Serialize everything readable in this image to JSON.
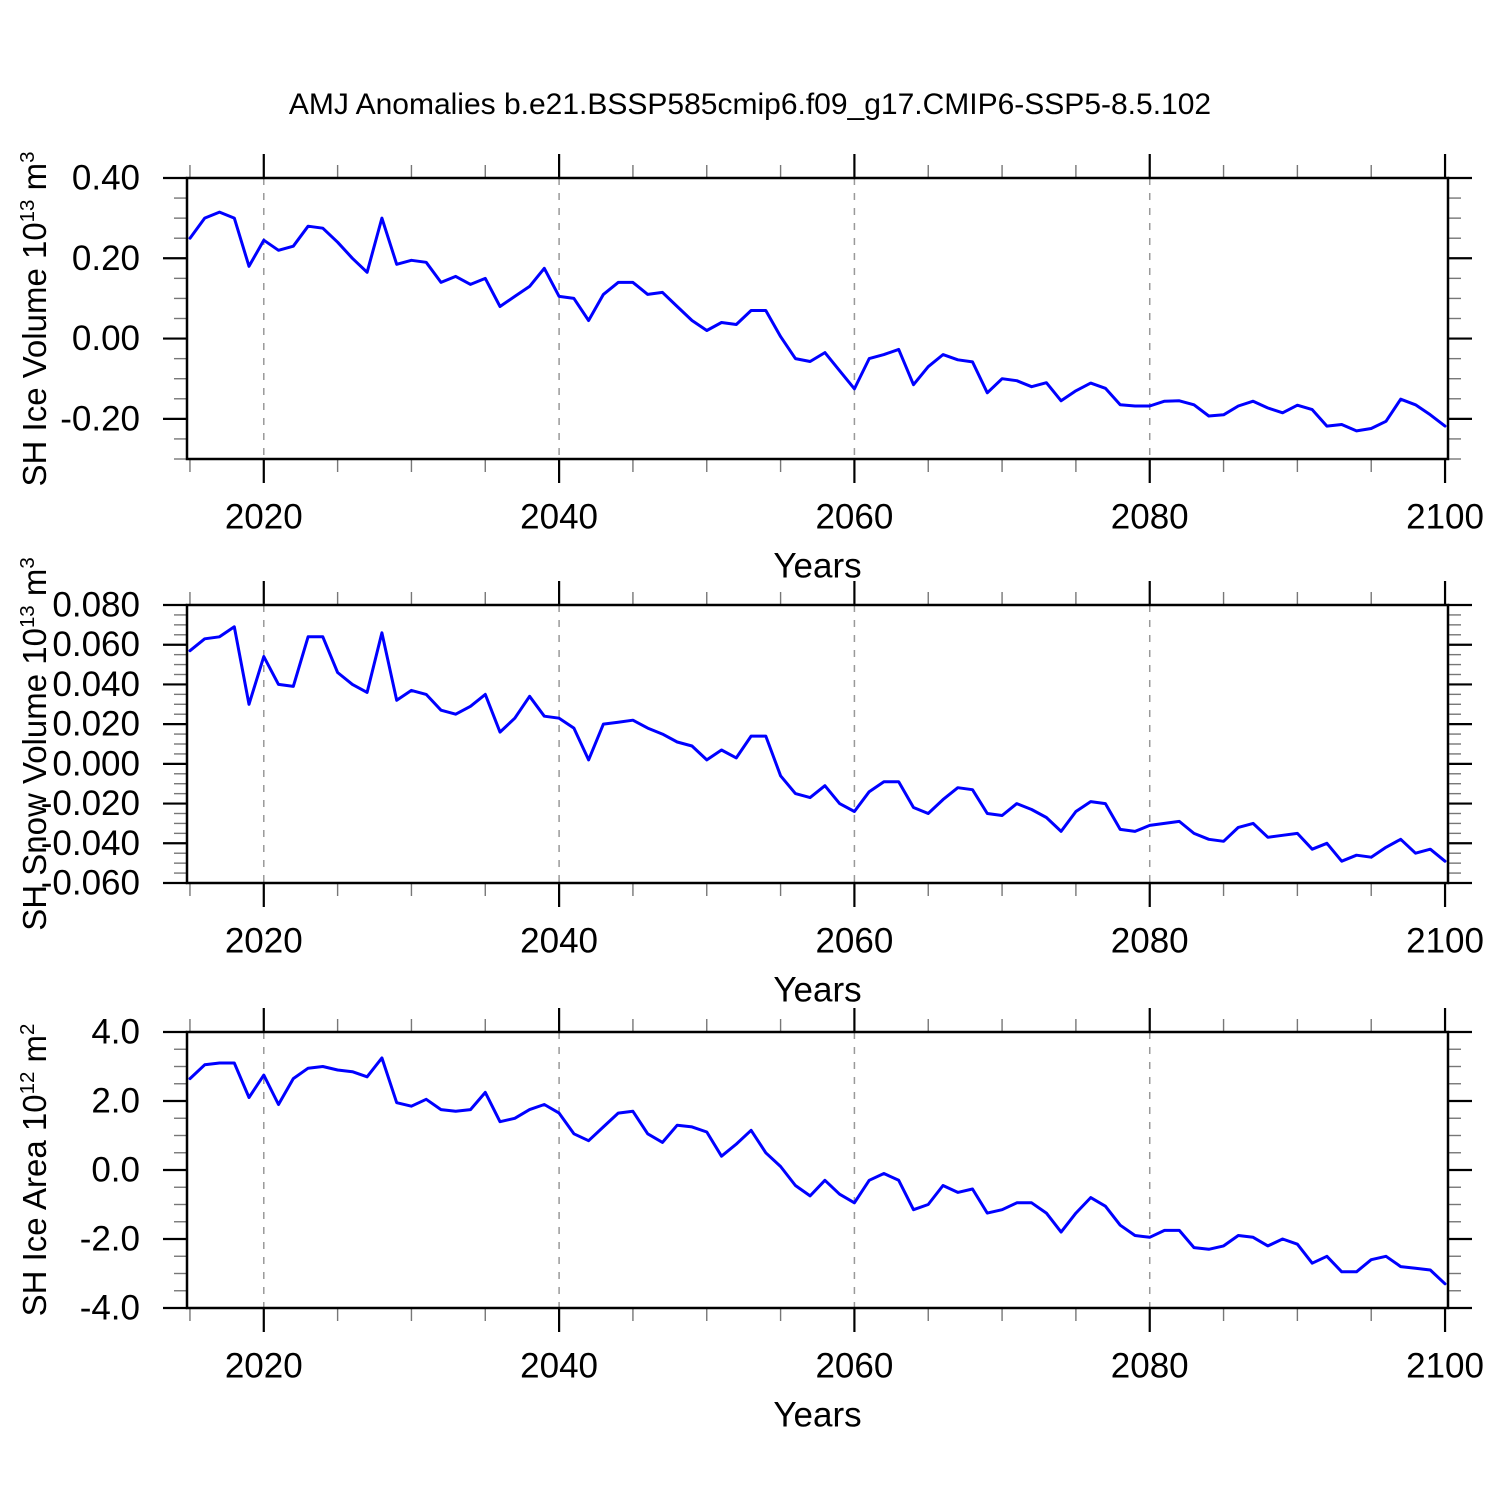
{
  "page": {
    "title": "AMJ Anomalies b.e21.BSSP585cmip6.f09_g17.CMIP6-SSP5-8.5.102",
    "background": "#ffffff"
  },
  "style": {
    "line_color": "#0000ff",
    "axis_color": "#000000",
    "grid_color": "#999999"
  },
  "axis": {
    "xlabel": "Years",
    "x_range": [
      2014.8,
      2100.2
    ],
    "x_major_ticks": [
      2020,
      2040,
      2060,
      2080,
      2100
    ],
    "x_major_labels": [
      "2020",
      "2040",
      "2060",
      "2080",
      "2100"
    ],
    "x_minor_step": 5,
    "gridlines": [
      2020,
      2040,
      2060,
      2080
    ]
  },
  "chart_data": [
    {
      "type": "line",
      "name": "sh-ice-volume",
      "ylabel": "SH Ice Volume 10^13 m^3",
      "ylabel_main": "SH Ice Volume 10",
      "ylabel_exp": "13",
      "ylabel_unit": " m",
      "ylabel_unit_exp": "3",
      "ylim": [
        -0.3,
        0.4
      ],
      "y_major_ticks": [
        0.4,
        0.2,
        0.0,
        -0.2
      ],
      "y_tick_labels": [
        "0.40",
        "0.20",
        "0.00",
        "-0.20"
      ],
      "y_minor_step": 0.05,
      "x_start": 2015,
      "values": [
        0.25,
        0.3,
        0.315,
        0.3,
        0.18,
        0.245,
        0.22,
        0.23,
        0.28,
        0.275,
        0.24,
        0.2,
        0.165,
        0.3,
        0.185,
        0.195,
        0.19,
        0.14,
        0.155,
        0.135,
        0.15,
        0.08,
        0.105,
        0.13,
        0.175,
        0.105,
        0.1,
        0.045,
        0.11,
        0.14,
        0.14,
        0.11,
        0.115,
        0.08,
        0.045,
        0.02,
        0.04,
        0.035,
        0.07,
        0.07,
        0.005,
        -0.05,
        -0.057,
        -0.035,
        -0.08,
        -0.125,
        -0.05,
        -0.04,
        -0.027,
        -0.115,
        -0.07,
        -0.04,
        -0.053,
        -0.058,
        -0.135,
        -0.1,
        -0.105,
        -0.12,
        -0.11,
        -0.155,
        -0.13,
        -0.111,
        -0.124,
        -0.165,
        -0.168,
        -0.168,
        -0.156,
        -0.155,
        -0.165,
        -0.193,
        -0.19,
        -0.168,
        -0.156,
        -0.173,
        -0.185,
        -0.166,
        -0.177,
        -0.218,
        -0.214,
        -0.23,
        -0.224,
        -0.206,
        -0.151,
        -0.165,
        -0.19,
        -0.218
      ]
    },
    {
      "type": "line",
      "name": "sh-snow-volume",
      "ylabel": "SH Snow Volume 10^13 m^3",
      "ylabel_main": "SH Snow Volume 10",
      "ylabel_exp": "13",
      "ylabel_unit": " m",
      "ylabel_unit_exp": "3",
      "ylim": [
        -0.06,
        0.08
      ],
      "y_major_ticks": [
        0.08,
        0.06,
        0.04,
        0.02,
        0.0,
        -0.02,
        -0.04,
        -0.06
      ],
      "y_tick_labels": [
        "0.080",
        "0.060",
        "0.040",
        "0.020",
        "0.000",
        "-0.020",
        "-0.040",
        "-0.060"
      ],
      "y_minor_step": 0.005,
      "x_start": 2015,
      "values": [
        0.057,
        0.063,
        0.064,
        0.069,
        0.03,
        0.054,
        0.04,
        0.039,
        0.064,
        0.064,
        0.046,
        0.04,
        0.036,
        0.066,
        0.032,
        0.037,
        0.035,
        0.027,
        0.025,
        0.029,
        0.035,
        0.016,
        0.023,
        0.034,
        0.024,
        0.023,
        0.018,
        0.002,
        0.02,
        0.021,
        0.022,
        0.018,
        0.015,
        0.011,
        0.009,
        0.002,
        0.007,
        0.003,
        0.014,
        0.014,
        -0.006,
        -0.015,
        -0.017,
        -0.011,
        -0.02,
        -0.024,
        -0.014,
        -0.009,
        -0.009,
        -0.022,
        -0.025,
        -0.018,
        -0.012,
        -0.013,
        -0.025,
        -0.026,
        -0.02,
        -0.023,
        -0.027,
        -0.034,
        -0.024,
        -0.019,
        -0.02,
        -0.033,
        -0.034,
        -0.031,
        -0.03,
        -0.029,
        -0.035,
        -0.038,
        -0.039,
        -0.032,
        -0.03,
        -0.037,
        -0.036,
        -0.035,
        -0.043,
        -0.04,
        -0.049,
        -0.046,
        -0.047,
        -0.042,
        -0.038,
        -0.045,
        -0.043,
        -0.049
      ]
    },
    {
      "type": "line",
      "name": "sh-ice-area",
      "ylabel": "SH Ice Area 10^12 m^2",
      "ylabel_main": "SH Ice Area 10",
      "ylabel_exp": "12",
      "ylabel_unit": " m",
      "ylabel_unit_exp": "2",
      "ylim": [
        -4.0,
        4.0
      ],
      "y_major_ticks": [
        4.0,
        2.0,
        0.0,
        -2.0,
        -4.0
      ],
      "y_tick_labels": [
        "4.0",
        "2.0",
        "0.0",
        "-2.0",
        "-4.0"
      ],
      "y_minor_step": 0.5,
      "x_start": 2015,
      "values": [
        2.65,
        3.05,
        3.1,
        3.1,
        2.1,
        2.75,
        1.9,
        2.65,
        2.95,
        3.0,
        2.9,
        2.85,
        2.7,
        3.25,
        1.95,
        1.85,
        2.05,
        1.75,
        1.7,
        1.75,
        2.25,
        1.4,
        1.5,
        1.75,
        1.9,
        1.65,
        1.05,
        0.85,
        1.25,
        1.65,
        1.7,
        1.05,
        0.8,
        1.3,
        1.25,
        1.1,
        0.4,
        0.75,
        1.15,
        0.5,
        0.1,
        -0.45,
        -0.75,
        -0.3,
        -0.7,
        -0.95,
        -0.3,
        -0.1,
        -0.3,
        -1.15,
        -1.0,
        -0.45,
        -0.65,
        -0.55,
        -1.25,
        -1.15,
        -0.95,
        -0.95,
        -1.25,
        -1.8,
        -1.25,
        -0.8,
        -1.05,
        -1.6,
        -1.9,
        -1.95,
        -1.75,
        -1.75,
        -2.25,
        -2.3,
        -2.2,
        -1.9,
        -1.95,
        -2.2,
        -2.0,
        -2.15,
        -2.7,
        -2.5,
        -2.95,
        -2.95,
        -2.6,
        -2.5,
        -2.8,
        -2.85,
        -2.9,
        -3.3
      ]
    }
  ]
}
